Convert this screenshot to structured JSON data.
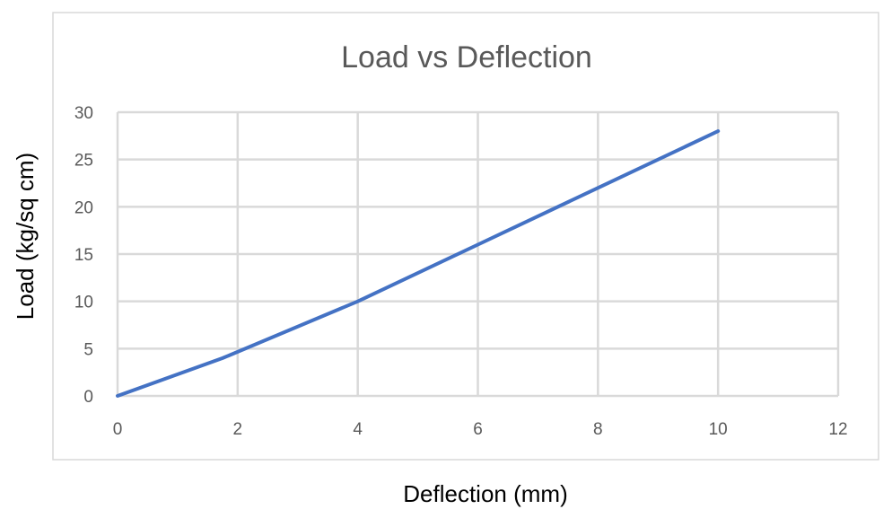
{
  "chart_data": {
    "type": "line",
    "title": "Load vs Deflection",
    "xlabel": "Deflection (mm)",
    "ylabel": "Load (kg/sq cm)",
    "xlim": [
      0,
      12
    ],
    "ylim": [
      0,
      30
    ],
    "xticks": [
      0,
      2,
      4,
      6,
      8,
      10,
      12
    ],
    "yticks": [
      0,
      5,
      10,
      15,
      20,
      25,
      30
    ],
    "grid": true,
    "legend": "none",
    "series": [
      {
        "color": "#4472c4",
        "x": [
          0,
          1.75,
          4,
          6,
          8,
          10
        ],
        "y": [
          0,
          4,
          10,
          16,
          22,
          28
        ]
      }
    ]
  }
}
